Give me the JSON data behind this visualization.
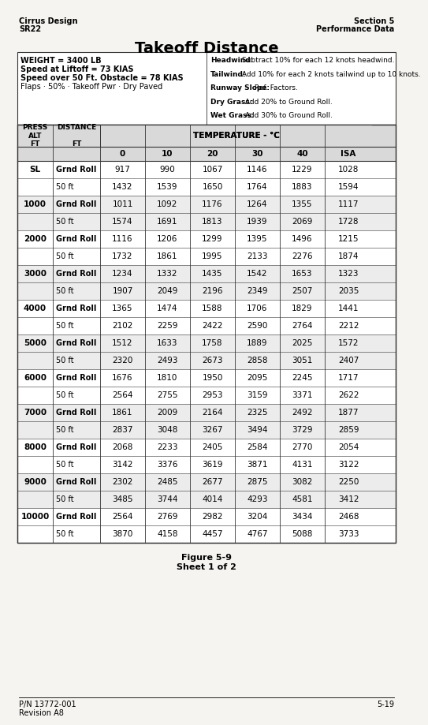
{
  "title": "Takeoff Distance",
  "header_left_line1": "Cirrus Design",
  "header_left_line2": "SR22",
  "header_right_line1": "Section 5",
  "header_right_line2": "Performance Data",
  "footer_left_line1": "P/N 13772-001",
  "footer_left_line2": "Revision A8",
  "footer_right": "5-19",
  "figure_caption": "Figure 5-9\nSheet 1 of 2",
  "conditions_left": [
    "WEIGHT = 3400 LB",
    "Speed at Liftoff = 73 KIAS",
    "Speed over 50 Ft. Obstacle = 78 KIAS",
    "Flaps · 50% · Takeoff Pwr · Dry Paved"
  ],
  "conditions_left_bold": [
    true,
    true,
    true,
    false
  ],
  "conditions_right": [
    [
      "Headwind:",
      " Subtract 10% for each 12 knots headwind."
    ],
    [
      "Tailwind:",
      " Add 10% for each 2 knots tailwind up to 10 knots."
    ],
    [
      "Runway Slope:",
      " Ref. Factors."
    ],
    [
      "Dry Grass:",
      " Add 20% to Ground Roll."
    ],
    [
      "Wet Grass:",
      " Add 30% to Ground Roll."
    ]
  ],
  "col_headers": [
    "PRESS\nALT\nFT",
    "DISTANCE\n\nFT",
    "0",
    "10",
    "20",
    "30",
    "40",
    "ISA"
  ],
  "temp_header": "TEMPERATURE - °C",
  "table_data": [
    [
      "SL",
      "Grnd Roll",
      917,
      990,
      1067,
      1146,
      1229,
      1028
    ],
    [
      "",
      "50 ft",
      1432,
      1539,
      1650,
      1764,
      1883,
      1594
    ],
    [
      "1000",
      "Grnd Roll",
      1011,
      1092,
      1176,
      1264,
      1355,
      1117
    ],
    [
      "",
      "50 ft",
      1574,
      1691,
      1813,
      1939,
      2069,
      1728
    ],
    [
      "2000",
      "Grnd Roll",
      1116,
      1206,
      1299,
      1395,
      1496,
      1215
    ],
    [
      "",
      "50 ft",
      1732,
      1861,
      1995,
      2133,
      2276,
      1874
    ],
    [
      "3000",
      "Grnd Roll",
      1234,
      1332,
      1435,
      1542,
      1653,
      1323
    ],
    [
      "",
      "50 ft",
      1907,
      2049,
      2196,
      2349,
      2507,
      2035
    ],
    [
      "4000",
      "Grnd Roll",
      1365,
      1474,
      1588,
      1706,
      1829,
      1441
    ],
    [
      "",
      "50 ft",
      2102,
      2259,
      2422,
      2590,
      2764,
      2212
    ],
    [
      "5000",
      "Grnd Roll",
      1512,
      1633,
      1758,
      1889,
      2025,
      1572
    ],
    [
      "",
      "50 ft",
      2320,
      2493,
      2673,
      2858,
      3051,
      2407
    ],
    [
      "6000",
      "Grnd Roll",
      1676,
      1810,
      1950,
      2095,
      2245,
      1717
    ],
    [
      "",
      "50 ft",
      2564,
      2755,
      2953,
      3159,
      3371,
      2622
    ],
    [
      "7000",
      "Grnd Roll",
      1861,
      2009,
      2164,
      2325,
      2492,
      1877
    ],
    [
      "",
      "50 ft",
      2837,
      3048,
      3267,
      3494,
      3729,
      2859
    ],
    [
      "8000",
      "Grnd Roll",
      2068,
      2233,
      2405,
      2584,
      2770,
      2054
    ],
    [
      "",
      "50 ft",
      3142,
      3376,
      3619,
      3871,
      4131,
      3122
    ],
    [
      "9000",
      "Grnd Roll",
      2302,
      2485,
      2677,
      2875,
      3082,
      2250
    ],
    [
      "",
      "50 ft",
      3485,
      3744,
      4014,
      4293,
      4581,
      3412
    ],
    [
      "10000",
      "Grnd Roll",
      2564,
      2769,
      2982,
      3204,
      3434,
      2468
    ],
    [
      "",
      "50 ft",
      3870,
      4158,
      4457,
      4767,
      5088,
      3733
    ]
  ],
  "bg_color": "#f5f4f0",
  "table_bg": "#ffffff",
  "header_bg": "#d9d9d9",
  "border_color": "#333333",
  "text_color": "#000000"
}
